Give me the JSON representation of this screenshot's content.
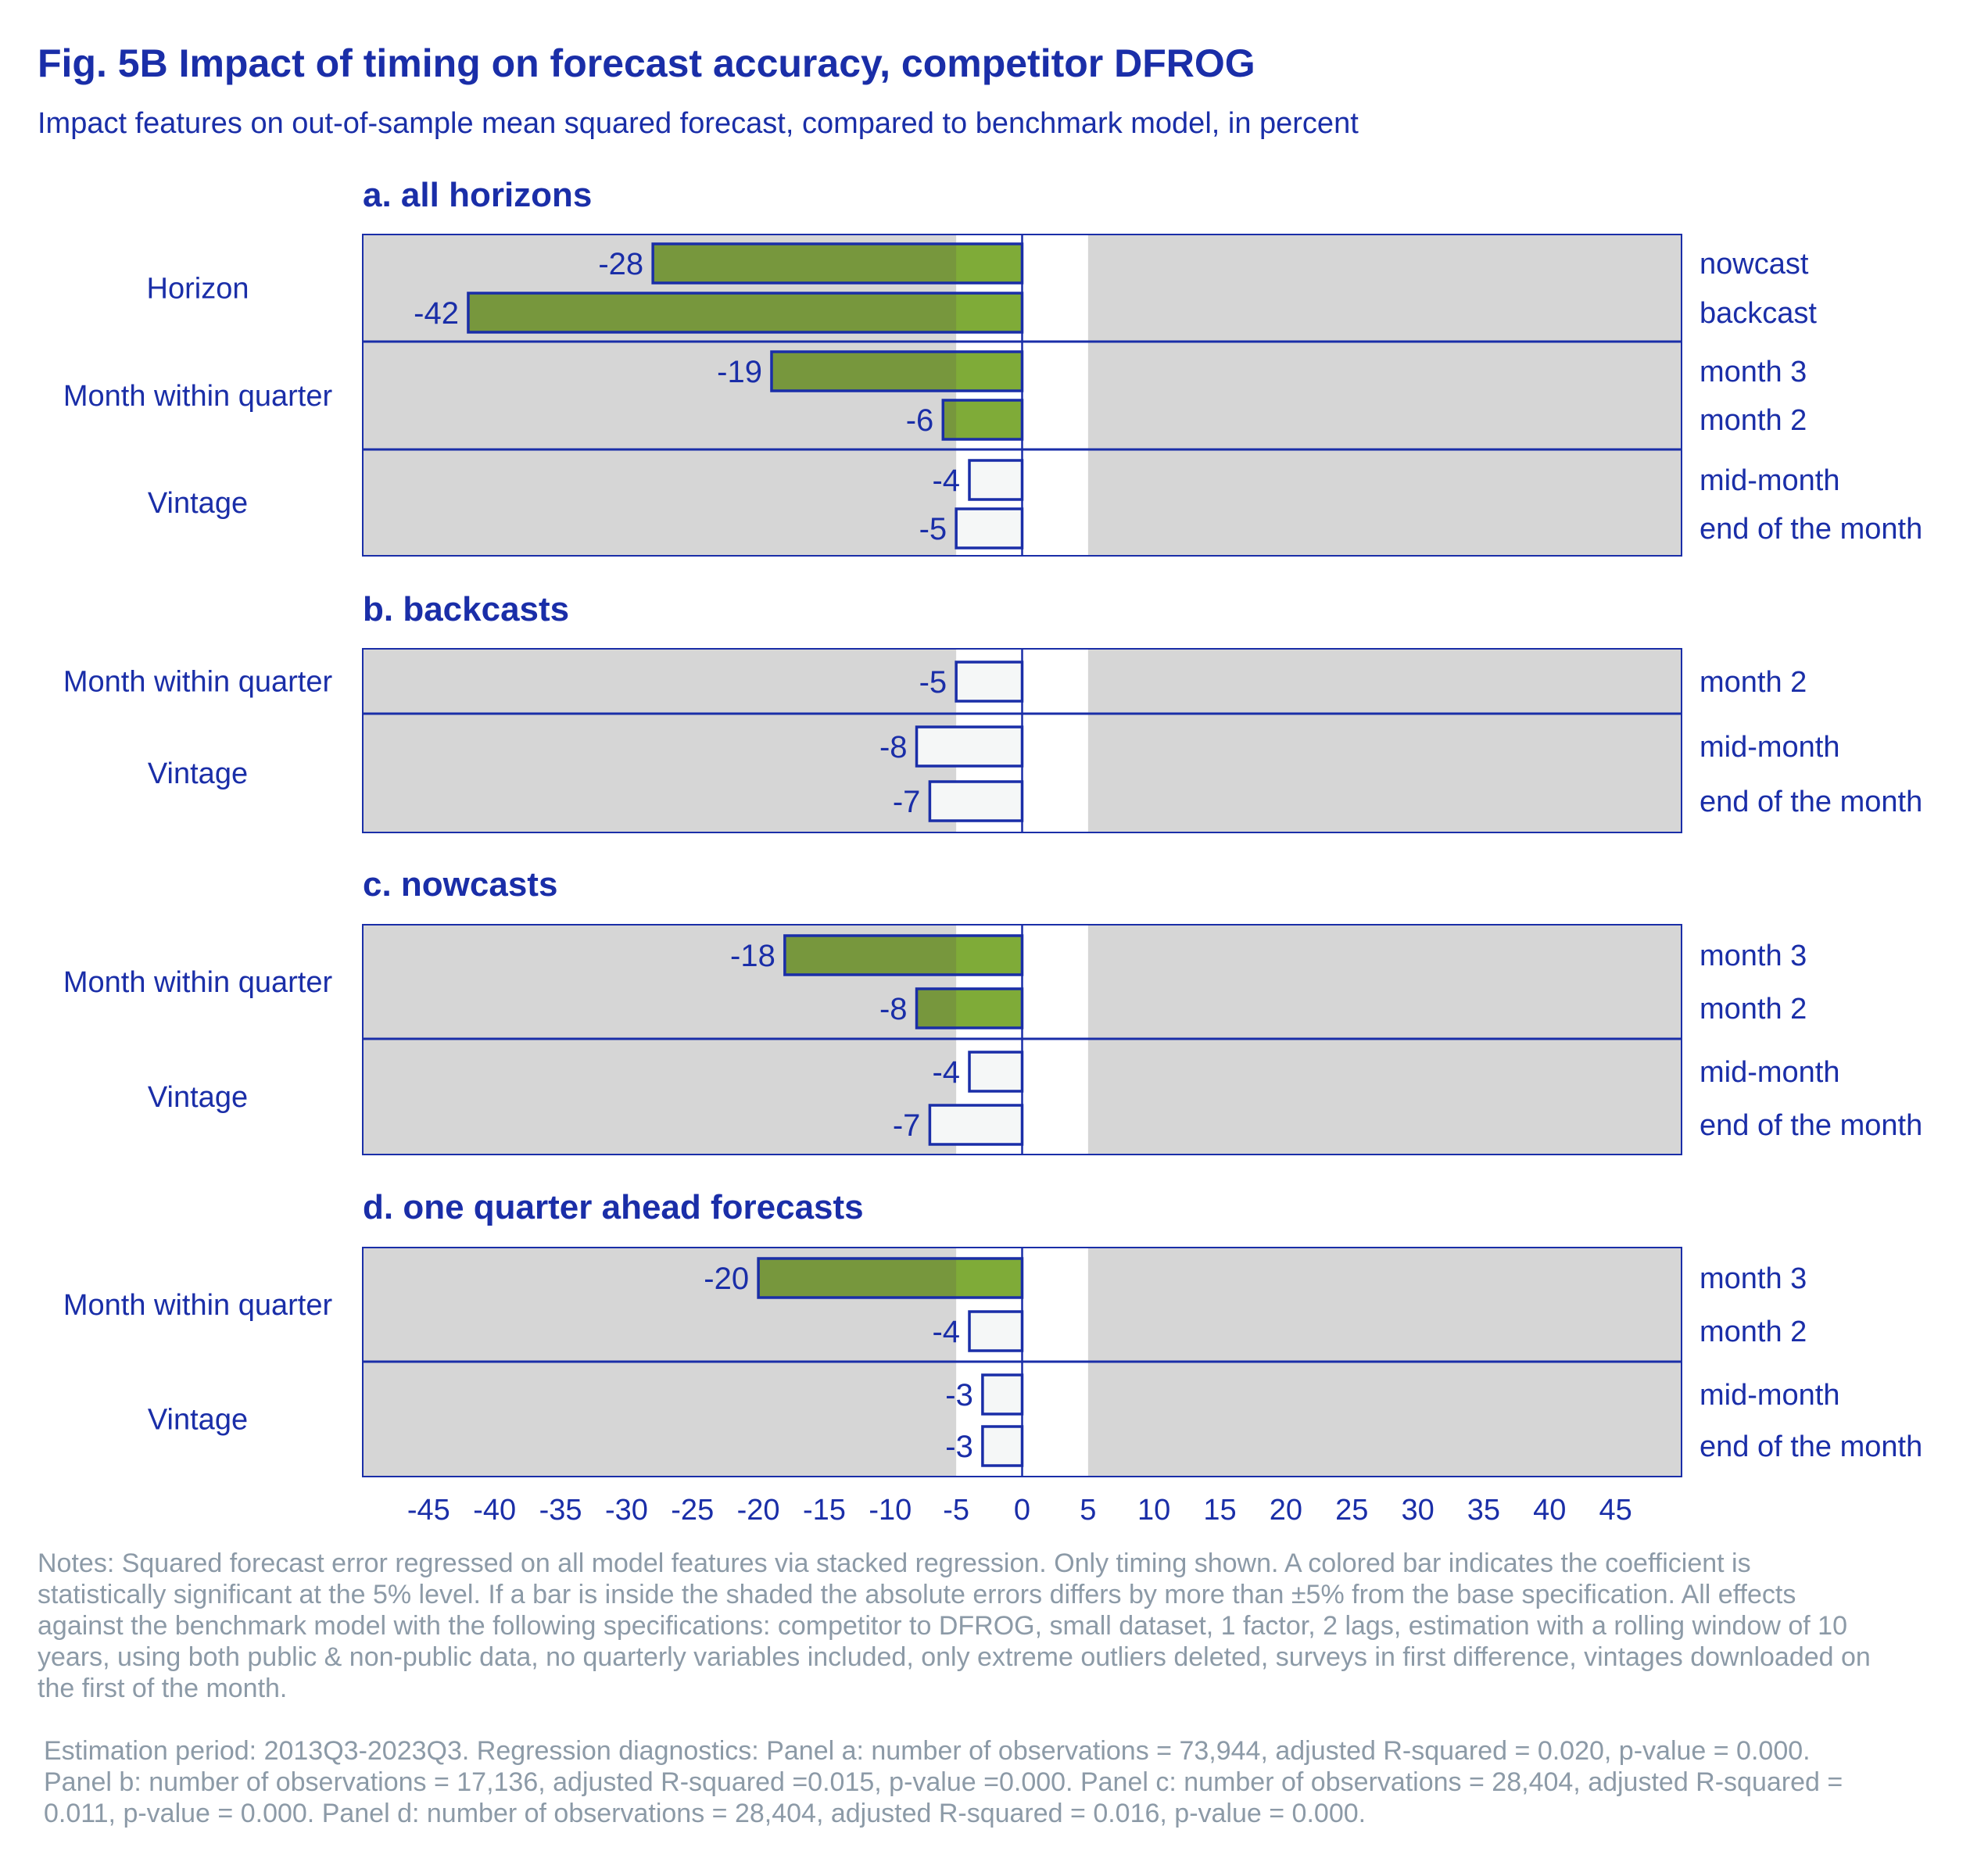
{
  "title": "Fig. 5B Impact of timing on forecast accuracy, competitor DFROG",
  "subtitle": "Impact features on out-of-sample mean squared forecast, compared to benchmark model, in percent",
  "colors": {
    "title": "#1a2ea8",
    "text": "#1a2ea8",
    "frame": "#1a2ea8",
    "shade": "#d6d6d6",
    "significant_outer": "#77973d",
    "significant_inner": "#7fab38",
    "insignificant_fill": "#f5f7f7",
    "notes": "#8c9aa7"
  },
  "chart_data": {
    "type": "bar",
    "orientation": "horizontal",
    "xlim": [
      -50,
      50
    ],
    "x_ticks": [
      -45,
      -40,
      -35,
      -30,
      -25,
      -20,
      -15,
      -10,
      -5,
      0,
      5,
      10,
      15,
      20,
      25,
      30,
      35,
      40,
      45
    ],
    "shaded_band": "outside [-5, 5]",
    "panels": [
      {
        "title": "a. all horizons",
        "groups": [
          {
            "label": "Horizon",
            "bars": [
              {
                "label": "nowcast",
                "value": -28,
                "significant": true
              },
              {
                "label": "backcast",
                "value": -42,
                "significant": true
              }
            ]
          },
          {
            "label": "Month within quarter",
            "bars": [
              {
                "label": "month 3",
                "value": -19,
                "significant": true
              },
              {
                "label": "month 2",
                "value": -6,
                "significant": true
              }
            ]
          },
          {
            "label": "Vintage",
            "bars": [
              {
                "label": "mid-month",
                "value": -4,
                "significant": false
              },
              {
                "label": "end of the month",
                "value": -5,
                "significant": false
              }
            ]
          }
        ]
      },
      {
        "title": "b. backcasts",
        "groups": [
          {
            "label": "Month within quarter",
            "bars": [
              {
                "label": "month 2",
                "value": -5,
                "significant": false
              }
            ]
          },
          {
            "label": "Vintage",
            "bars": [
              {
                "label": "mid-month",
                "value": -8,
                "significant": false
              },
              {
                "label": "end of the month",
                "value": -7,
                "significant": false
              }
            ]
          }
        ]
      },
      {
        "title": "c. nowcasts",
        "groups": [
          {
            "label": "Month within quarter",
            "bars": [
              {
                "label": "month 3",
                "value": -18,
                "significant": true
              },
              {
                "label": "month 2",
                "value": -8,
                "significant": true
              }
            ]
          },
          {
            "label": "Vintage",
            "bars": [
              {
                "label": "mid-month",
                "value": -4,
                "significant": false
              },
              {
                "label": "end of the month",
                "value": -7,
                "significant": false
              }
            ]
          }
        ]
      },
      {
        "title": "d. one quarter ahead forecasts",
        "groups": [
          {
            "label": "Month within quarter",
            "bars": [
              {
                "label": "month 3",
                "value": -20,
                "significant": true
              },
              {
                "label": "month 2",
                "value": -4,
                "significant": false
              }
            ]
          },
          {
            "label": "Vintage",
            "bars": [
              {
                "label": "mid-month",
                "value": -3,
                "significant": false
              },
              {
                "label": "end of the month",
                "value": -3,
                "significant": false
              }
            ]
          }
        ]
      }
    ]
  },
  "notes": {
    "paragraph1": "Notes: Squared forecast error regressed on all model features via stacked regression. Only timing shown. A colored bar indicates the coefficient is statistically significant at the 5% level. If a bar is inside the shaded the absolute errors differs by more than ±5% from the base specification. All effects against the benchmark model with the following specifications: competitor to DFROG, small dataset, 1 factor, 2 lags, estimation with a rolling window of 10 years, using both public & non-public data, no quarterly variables included, only extreme outliers deleted, surveys in first difference, vintages downloaded on the first of the month.",
    "paragraph2": "Estimation period: 2013Q3-2023Q3. Regression diagnostics: Panel a: number of observations = 73,944, adjusted R-squared = 0.020, p-value = 0.000. Panel b: number of observations = 17,136, adjusted R-squared =0.015, p-value =0.000. Panel c: number of observations = 28,404, adjusted R-squared = 0.011, p-value = 0.000. Panel d: number of observations = 28,404, adjusted R-squared = 0.016, p-value = 0.000."
  }
}
